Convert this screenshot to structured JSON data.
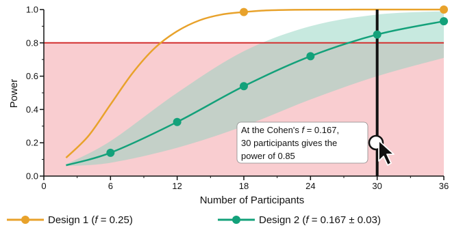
{
  "chart_data": {
    "type": "line",
    "xlabel": "Number of Participants",
    "ylabel": "Power",
    "xlim": [
      0,
      36
    ],
    "ylim": [
      0,
      1.0
    ],
    "x_ticks": [
      "0",
      "6",
      "12",
      "18",
      "24",
      "30",
      "36"
    ],
    "y_ticks": [
      "0.0",
      "0.2",
      "0.4",
      "0.6",
      "0.8",
      "1.0"
    ],
    "threshold": {
      "value": 0.8,
      "color": "#d32f2f",
      "region_color": "#f9cdd0"
    },
    "series": [
      {
        "name": "Design 1 (f = 0.25)",
        "legend_prefix": "Design 1 (",
        "legend_italic": "f",
        "legend_suffix": " = 0.25)",
        "color": "#e8a22b",
        "x": [
          2,
          4,
          6,
          8,
          10,
          12,
          14,
          16,
          18,
          20,
          22,
          24,
          30,
          36
        ],
        "y": [
          0.11,
          0.24,
          0.43,
          0.62,
          0.77,
          0.87,
          0.935,
          0.97,
          0.985,
          0.995,
          0.998,
          0.999,
          1.0,
          1.0
        ],
        "markers_x": [
          18,
          36
        ],
        "markers_y": [
          0.985,
          1.0
        ]
      },
      {
        "name": "Design 2 (f = 0.167 ± 0.03)",
        "legend_prefix": "Design 2 (",
        "legend_italic": "f",
        "legend_suffix": " = 0.167 ± 0.03)",
        "color": "#13a17a",
        "band_color": "#8fd3c0",
        "x": [
          2,
          6,
          12,
          18,
          24,
          30,
          36
        ],
        "y": [
          0.065,
          0.14,
          0.325,
          0.54,
          0.72,
          0.85,
          0.93
        ],
        "band_x": [
          2,
          6,
          12,
          18,
          24,
          30,
          36
        ],
        "band_low": [
          0.06,
          0.08,
          0.17,
          0.3,
          0.46,
          0.6,
          0.71
        ],
        "band_high": [
          0.07,
          0.21,
          0.5,
          0.75,
          0.9,
          0.97,
          0.99
        ],
        "markers_x": [
          6,
          12,
          18,
          24,
          30,
          36
        ],
        "markers_y": [
          0.14,
          0.325,
          0.54,
          0.72,
          0.85,
          0.93
        ]
      }
    ],
    "cursor_x": 30,
    "annotation": {
      "line1_prefix": "At the Cohen's ",
      "line1_italic": "f",
      "line1_suffix": " = 0.167,",
      "line2": "30 participants gives the",
      "line3": "power of 0.85"
    }
  }
}
